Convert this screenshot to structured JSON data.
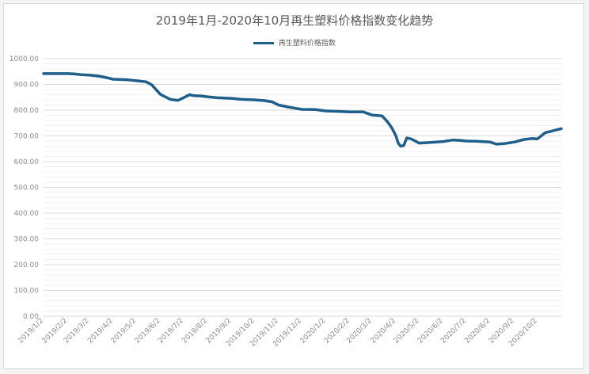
{
  "chart_data": {
    "type": "line",
    "title": "2019年1月-2020年10月再生塑料价格指数变化趋势",
    "legend_position": "top",
    "grid": true,
    "series": [
      {
        "name": "再生塑料价格指数",
        "color": "#1f5f8b",
        "points": [
          [
            "2019/1/2",
            942
          ],
          [
            "2019/1/20",
            942
          ],
          [
            "2019/2/2",
            942
          ],
          [
            "2019/2/10",
            941
          ],
          [
            "2019/2/20",
            938
          ],
          [
            "2019/3/2",
            936
          ],
          [
            "2019/3/15",
            932
          ],
          [
            "2019/3/25",
            926
          ],
          [
            "2019/4/2",
            920
          ],
          [
            "2019/4/20",
            918
          ],
          [
            "2019/5/2",
            914
          ],
          [
            "2019/5/15",
            910
          ],
          [
            "2019/5/22",
            898
          ],
          [
            "2019/6/2",
            862
          ],
          [
            "2019/6/15",
            842
          ],
          [
            "2019/6/25",
            838
          ],
          [
            "2019/7/2",
            848
          ],
          [
            "2019/7/10",
            860
          ],
          [
            "2019/7/16",
            856
          ],
          [
            "2019/7/25",
            855
          ],
          [
            "2019/8/2",
            852
          ],
          [
            "2019/8/15",
            848
          ],
          [
            "2019/9/2",
            846
          ],
          [
            "2019/9/15",
            842
          ],
          [
            "2019/10/2",
            840
          ],
          [
            "2019/10/15",
            837
          ],
          [
            "2019/10/25",
            832
          ],
          [
            "2019/11/2",
            820
          ],
          [
            "2019/11/15",
            812
          ],
          [
            "2019/12/2",
            803
          ],
          [
            "2019/12/20",
            802
          ],
          [
            "2020/1/2",
            797
          ],
          [
            "2020/1/20",
            795
          ],
          [
            "2020/2/2",
            793
          ],
          [
            "2020/2/20",
            793
          ],
          [
            "2020/3/2",
            781
          ],
          [
            "2020/3/15",
            778
          ],
          [
            "2020/3/22",
            755
          ],
          [
            "2020/3/28",
            730
          ],
          [
            "2020/4/2",
            700
          ],
          [
            "2020/4/5",
            672
          ],
          [
            "2020/4/8",
            660
          ],
          [
            "2020/4/12",
            662
          ],
          [
            "2020/4/16",
            692
          ],
          [
            "2020/4/22",
            688
          ],
          [
            "2020/5/2",
            672
          ],
          [
            "2020/5/15",
            674
          ],
          [
            "2020/6/2",
            678
          ],
          [
            "2020/6/15",
            684
          ],
          [
            "2020/6/25",
            682
          ],
          [
            "2020/7/2",
            680
          ],
          [
            "2020/7/15",
            679
          ],
          [
            "2020/8/2",
            676
          ],
          [
            "2020/8/10",
            668
          ],
          [
            "2020/8/20",
            670
          ],
          [
            "2020/9/2",
            676
          ],
          [
            "2020/9/15",
            686
          ],
          [
            "2020/9/25",
            690
          ],
          [
            "2020/10/2",
            688
          ],
          [
            "2020/10/12",
            712
          ],
          [
            "2020/10/25",
            722
          ],
          [
            "2020/11/2",
            728
          ]
        ]
      }
    ],
    "y_axis": {
      "min": 0,
      "max": 1000,
      "step": 100,
      "tick_labels": [
        "0.00",
        "100.00",
        "200.00",
        "300.00",
        "400.00",
        "500.00",
        "600.00",
        "700.00",
        "800.00",
        "900.00",
        "1000.00"
      ]
    },
    "x_axis": {
      "range": [
        "2019/1/2",
        "2020/11/2"
      ],
      "tick_labels": [
        "2019/1/2",
        "2019/2/2",
        "2019/3/2",
        "2019/4/2",
        "2019/5/2",
        "2019/6/2",
        "2019/7/2",
        "2019/8/2",
        "2019/9/2",
        "2019/10/2",
        "2019/11/2",
        "2019/12/2",
        "2020/1/2",
        "2020/2/2",
        "2020/3/2",
        "2020/4/2",
        "2020/5/2",
        "2020/6/2",
        "2020/7/2",
        "2020/8/2",
        "2020/9/2",
        "2020/10/2"
      ]
    }
  }
}
